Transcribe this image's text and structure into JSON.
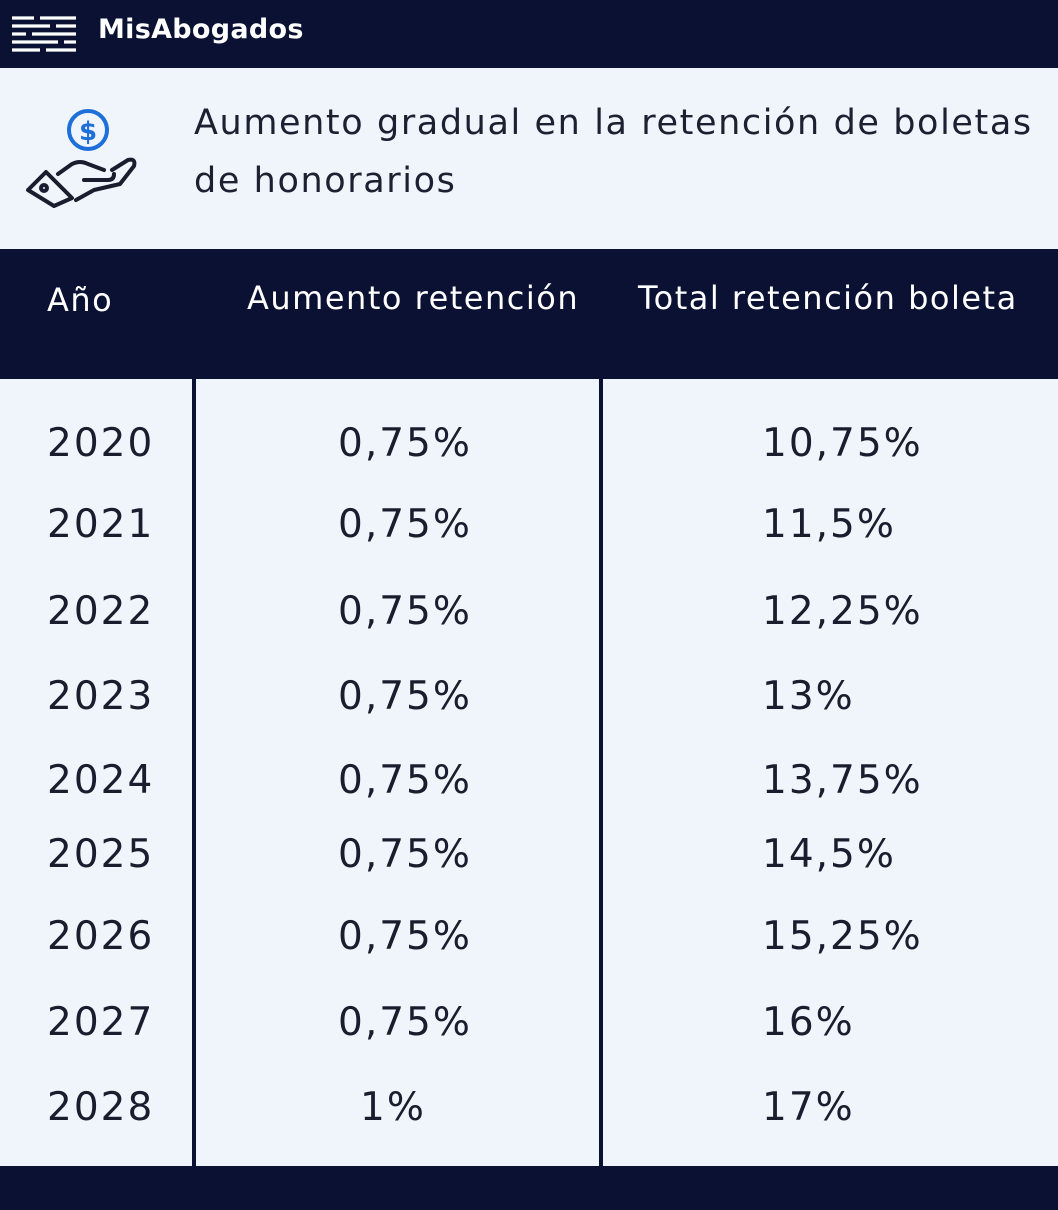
{
  "header": {
    "brand": "MisAbogados",
    "icon": "menu-lines-icon",
    "background": "#0b1133"
  },
  "title": {
    "line1": "Aumento gradual en la retención de boletas",
    "line2": "de honorarios",
    "icon": "hand-coin-icon",
    "icon_color": "#1e6fd9"
  },
  "table": {
    "columns": [
      "Año",
      "Aumento retención",
      "Total retención boleta"
    ],
    "rows": [
      {
        "year": "2020",
        "increase": "0,75%",
        "total": "10,75%"
      },
      {
        "year": "2021",
        "increase": "0,75%",
        "total": "11,5%"
      },
      {
        "year": "2022",
        "increase": "0,75%",
        "total": "12,25%"
      },
      {
        "year": "2023",
        "increase": "0,75%",
        "total": "13%"
      },
      {
        "year": "2024",
        "increase": "0,75%",
        "total": "13,75%"
      },
      {
        "year": "2025",
        "increase": "0,75%",
        "total": "14,5%"
      },
      {
        "year": "2026",
        "increase": "0,75%",
        "total": "15,25%"
      },
      {
        "year": "2027",
        "increase": "0,75%",
        "total": "16%"
      },
      {
        "year": "2028",
        "increase": "1%",
        "total": "17%"
      }
    ]
  }
}
